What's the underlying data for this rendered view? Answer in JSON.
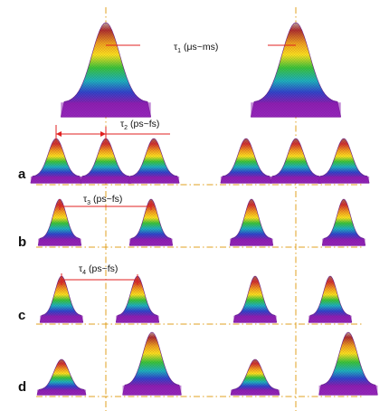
{
  "rows": {
    "a": "a",
    "b": "b",
    "c": "c",
    "d": "d"
  },
  "annotations": {
    "tau1": {
      "sym": "τ",
      "sub": "1",
      "rest": " (μs~ms)"
    },
    "tau2": {
      "sym": "τ",
      "sub": "2",
      "rest": " (ps~fs)"
    },
    "tau3": {
      "sym": "τ",
      "sub": "3",
      "rest": " (ps~fs)"
    },
    "tau4": {
      "sym": "τ",
      "sub": "4",
      "rest": " (ps~fs)"
    }
  },
  "colors": {
    "guide": "#e0a020",
    "marker": "#e02020",
    "peak_top": "#8a3b3b",
    "bands": [
      "#8a3b3b",
      "#d23030",
      "#ffd21a",
      "#3cc43c",
      "#1fb0c0",
      "#3344cc",
      "#8c1fb0"
    ]
  }
}
